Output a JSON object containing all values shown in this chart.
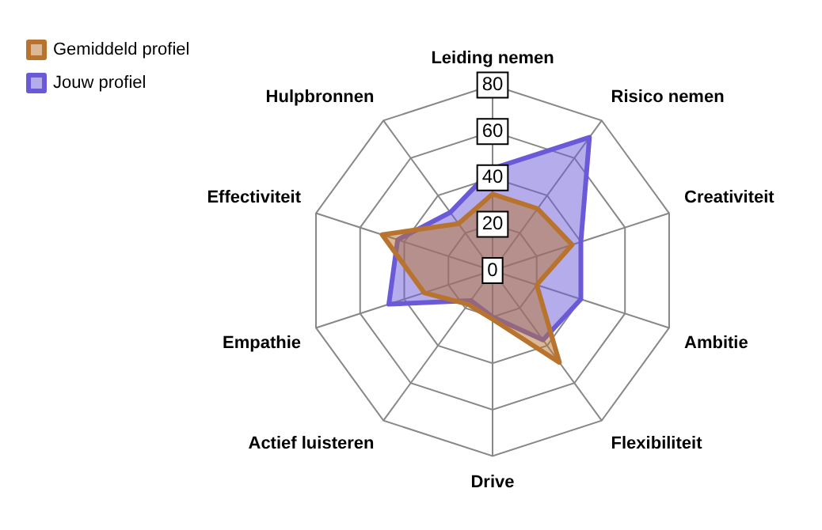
{
  "chart_data": {
    "type": "radar",
    "categories": [
      "Leiding nemen",
      "Risico nemen",
      "Creativiteit",
      "Ambitie",
      "Flexibiliteit",
      "Drive",
      "Actief luisteren",
      "Empathie",
      "Effectiviteit",
      "Hulpbronnen"
    ],
    "series": [
      {
        "name": "Gemiddeld profiel",
        "color": "#b8732e",
        "values": [
          33,
          33,
          36,
          20,
          49,
          21,
          18,
          31,
          50,
          25
        ]
      },
      {
        "name": "Jouw profiel",
        "color": "#6a5ad8",
        "values": [
          44,
          71,
          40,
          40,
          37,
          20,
          16,
          47,
          43,
          31
        ]
      }
    ],
    "ylim": [
      0,
      80
    ],
    "yticks": [
      0,
      20,
      40,
      60,
      80
    ],
    "grid": true,
    "legend": "top left"
  }
}
